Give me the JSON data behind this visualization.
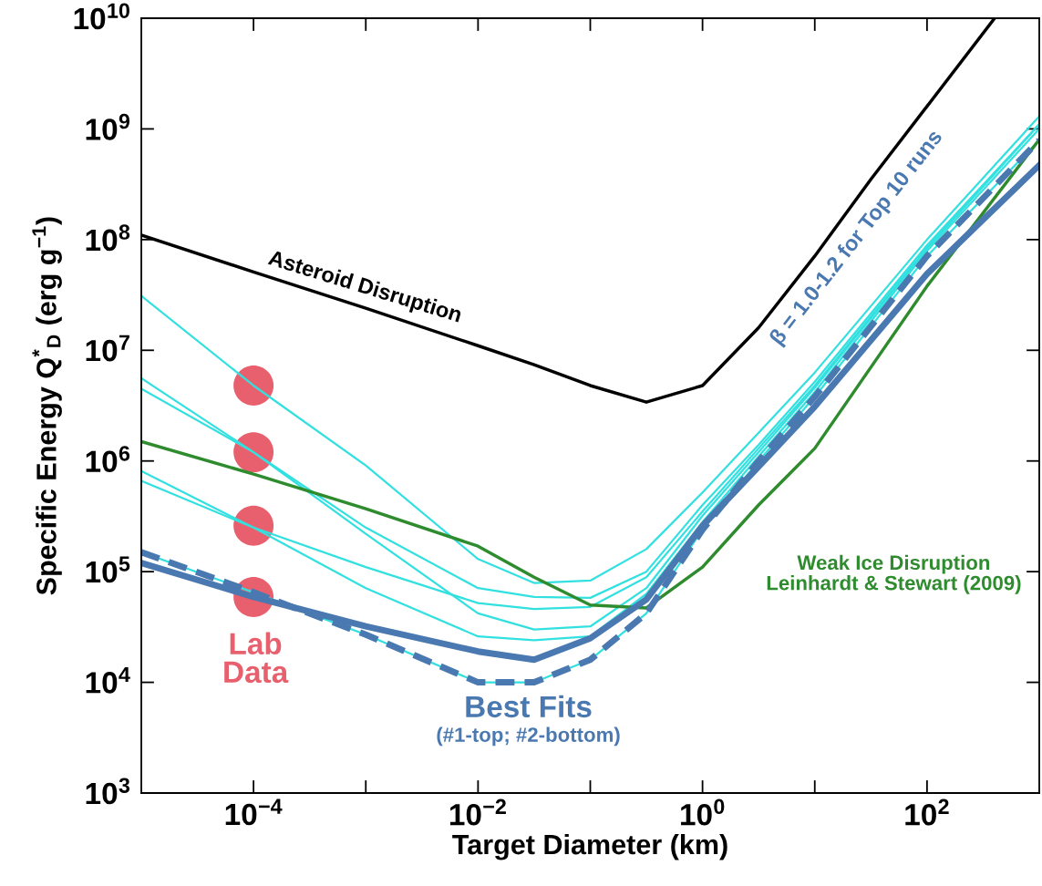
{
  "chart_data": {
    "type": "line",
    "xlabel": "Target Diameter (km)",
    "ylabel": "Specific Energy Q$^{*}$$_{D}$ (erg g$^{−1}$)",
    "log": "xy",
    "grid": false,
    "legend": false,
    "x": [
      1e-05,
      0.0001,
      0.001,
      0.01,
      0.0316,
      0.1,
      0.316,
      1,
      3.16,
      10,
      100,
      1000
    ],
    "xlim": [
      1e-05,
      1000
    ],
    "ylim": [
      1000,
      10000000000.0
    ],
    "xticks": [
      {
        "value": 0.0001,
        "label": "10$^{−4}$"
      },
      {
        "value": 0.001,
        "label": null
      },
      {
        "value": 0.01,
        "label": "10$^{−2}$"
      },
      {
        "value": 0.1,
        "label": null
      },
      {
        "value": 1,
        "label": "10$^{0}$"
      },
      {
        "value": 10,
        "label": null
      },
      {
        "value": 100,
        "label": "10$^{2}$"
      }
    ],
    "yticks": [
      {
        "value": 1000,
        "label": "10$^{3}$"
      },
      {
        "value": 10000,
        "label": "10$^{4}$"
      },
      {
        "value": 100000,
        "label": "10$^{5}$"
      },
      {
        "value": 1000000,
        "label": "10$^{6}$"
      },
      {
        "value": 10000000,
        "label": "10$^{7}$"
      },
      {
        "value": 100000000,
        "label": "10$^{8}$"
      },
      {
        "value": 1000000000,
        "label": "10$^{9}$"
      },
      {
        "value": 10000000000,
        "label": "10$^{10}$"
      }
    ],
    "series": [
      {
        "color": "#33e0e0",
        "values": [
          31000000.0,
          4800000.0,
          910000.0,
          130000.0,
          79000.0,
          83000.0,
          160000.0,
          520000.0,
          1800000.0,
          6300000.0,
          100000000.0,
          1300000000.0
        ]
      },
      {
        "color": "#33e0e0",
        "values": [
          5600000.0,
          1200000.0,
          250000.0,
          71000.0,
          59000.0,
          58000.0,
          100000.0,
          400000.0,
          1400000.0,
          5200000.0,
          89000000.0,
          1100000000.0
        ]
      },
      {
        "color": "#33e0e0",
        "values": [
          4500000.0,
          1200000.0,
          220000.0,
          42000.0,
          30000.0,
          32000.0,
          71000.0,
          320000.0,
          1200000.0,
          4600000.0,
          83000000.0,
          1100000000.0
        ]
      },
      {
        "color": "#33e0e0",
        "values": [
          810000.0,
          250000.0,
          110000.0,
          52000.0,
          46000.0,
          48000.0,
          89000.0,
          350000.0,
          1300000.0,
          4800000.0,
          85000000.0,
          1100000000.0
        ]
      },
      {
        "color": "#33e0e0",
        "values": [
          660000.0,
          250000.0,
          71000.0,
          26000.0,
          24000.0,
          26000.0,
          63000.0,
          280000.0,
          1100000.0,
          4200000.0,
          79000000.0,
          1000000000.0
        ]
      },
      {
        "color": "#33e0e0",
        "values": [
          150000.0,
          65000.0,
          27000.0,
          10000.0,
          10000.0,
          16000.0,
          42000.0,
          240000.0,
          1000000.0,
          3800000.0,
          71000000.0,
          790000000.0
        ]
      },
      {
        "color": "#2e8b2e",
        "values": [
          1500000.0,
          760000.0,
          370000.0,
          170000.0,
          89000.0,
          50000.0,
          47000.0,
          110000.0,
          400000.0,
          1300000.0,
          38000000.0,
          800000000.0
        ]
      },
      {
        "color": "#000000",
        "x": [
          1e-05,
          0.0001,
          0.001,
          0.01,
          0.0316,
          0.1,
          0.316,
          1,
          3.16,
          10,
          31.6,
          100,
          400
        ],
        "values": [
          110000000.0,
          51000000.0,
          24000000.0,
          11000000.0,
          7400000.0,
          4800000.0,
          3400000.0,
          4800000.0,
          16000000.0,
          71000000.0,
          350000000.0,
          1600000000.0,
          10000000000.0
        ]
      },
      {
        "color": "#4a78b0",
        "values": [
          120000.0,
          59000.0,
          32000.0,
          19000.0,
          16000.0,
          25000.0,
          56000.0,
          260000.0,
          890000.0,
          3100000.0,
          49000000.0,
          470000000.0
        ]
      },
      {
        "color": "#4a78b0",
        "line_style": "dashed",
        "values": [
          150000.0,
          65000.0,
          27000.0,
          10000.0,
          10000.0,
          16000.0,
          42000.0,
          240000.0,
          1000000.0,
          3800000.0,
          71000000.0,
          790000000.0
        ]
      },
      {
        "type": "scatter",
        "marker": "circle",
        "color": "#e8606e",
        "x": [
          0.0001,
          0.0001,
          0.0001,
          0.0001
        ],
        "values": [
          4800000.0,
          1200000.0,
          260000.0,
          59000.0
        ]
      }
    ],
    "annotations": [
      "Asteroid Disruption",
      "Lab\nData",
      "Best Fits",
      "(#1-top; #2-bottom)",
      "β = 1.0-1.2 for Top 10 runs",
      "Weak Ice Disruption\nLeinhardt & Stewart (2009)"
    ]
  }
}
